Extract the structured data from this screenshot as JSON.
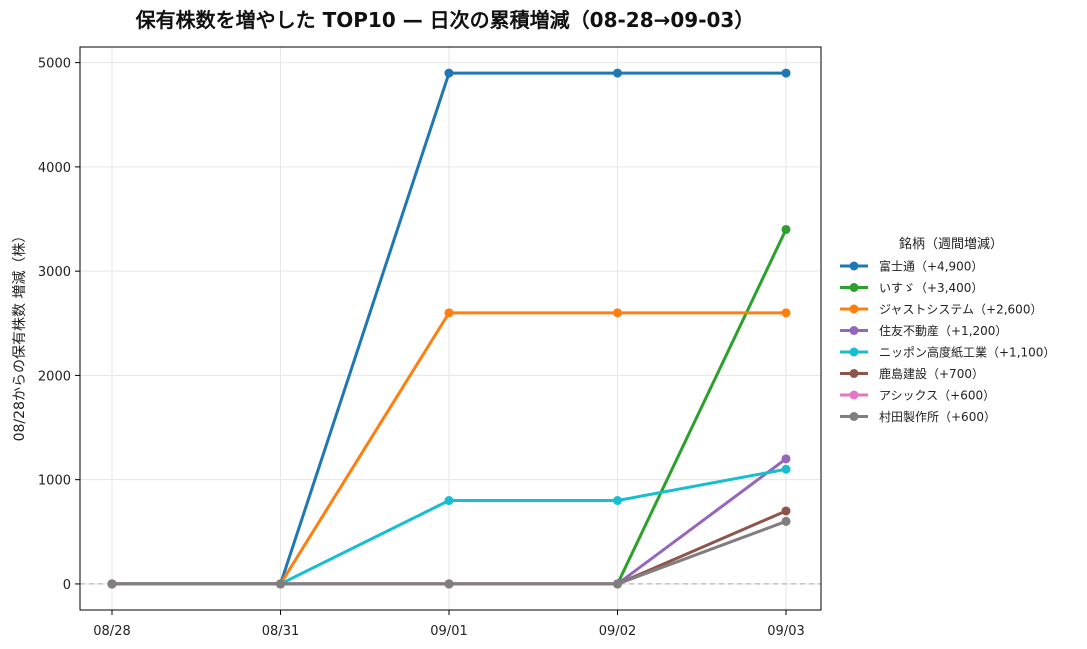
{
  "chart_data": {
    "type": "line",
    "title": "保有株数を増やした TOP10 — 日次の累積増減（08-28→09-03）",
    "xlabel": "",
    "ylabel": "08/28からの保有株数 増減（株）",
    "categories": [
      "08/28",
      "08/31",
      "09/01",
      "09/02",
      "09/03"
    ],
    "ylim": [
      -250,
      5150
    ],
    "yticks": [
      0,
      1000,
      2000,
      3000,
      4000,
      5000
    ],
    "grid": true,
    "zero_line": true,
    "legend_title": "銘柄（週間増減）",
    "legend_position": "right",
    "series": [
      {
        "name": "富士通（+4,900）",
        "color": "#1f77b4",
        "values": [
          0,
          0,
          4900,
          4900,
          4900
        ]
      },
      {
        "name": "いすゞ（+3,400）",
        "color": "#2ca02c",
        "values": [
          0,
          0,
          0,
          0,
          3400
        ]
      },
      {
        "name": "ジャストシステム（+2,600）",
        "color": "#ff7f0e",
        "values": [
          0,
          0,
          2600,
          2600,
          2600
        ]
      },
      {
        "name": "住友不動産（+1,200）",
        "color": "#9467bd",
        "values": [
          0,
          0,
          0,
          0,
          1200
        ]
      },
      {
        "name": "ニッポン高度紙工業（+1,100）",
        "color": "#17becf",
        "values": [
          0,
          0,
          800,
          800,
          1100
        ]
      },
      {
        "name": "鹿島建設（+700）",
        "color": "#8c564b",
        "values": [
          0,
          0,
          0,
          0,
          700
        ]
      },
      {
        "name": "アシックス（+600）",
        "color": "#e377c2",
        "values": [
          0,
          0,
          0,
          0,
          600
        ]
      },
      {
        "name": "村田製作所（+600）",
        "color": "#7f7f7f",
        "values": [
          0,
          0,
          0,
          0,
          600
        ]
      }
    ]
  }
}
